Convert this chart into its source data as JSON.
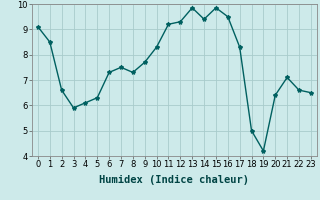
{
  "x": [
    0,
    1,
    2,
    3,
    4,
    5,
    6,
    7,
    8,
    9,
    10,
    11,
    12,
    13,
    14,
    15,
    16,
    17,
    18,
    19,
    20,
    21,
    22,
    23
  ],
  "y": [
    9.1,
    8.5,
    6.6,
    5.9,
    6.1,
    6.3,
    7.3,
    7.5,
    7.3,
    7.7,
    8.3,
    9.2,
    9.3,
    9.85,
    9.4,
    9.85,
    9.5,
    8.3,
    5.0,
    4.2,
    6.4,
    7.1,
    6.6,
    6.5
  ],
  "line_color": "#006060",
  "marker": "*",
  "marker_size": 3,
  "bg_color": "#cdeaea",
  "grid_color": "#a8cccc",
  "xlabel": "Humidex (Indice chaleur)",
  "xlabel_fontsize": 7.5,
  "xlim": [
    -0.5,
    23.5
  ],
  "ylim": [
    4,
    10
  ],
  "yticks": [
    4,
    5,
    6,
    7,
    8,
    9,
    10
  ],
  "xticks": [
    0,
    1,
    2,
    3,
    4,
    5,
    6,
    7,
    8,
    9,
    10,
    11,
    12,
    13,
    14,
    15,
    16,
    17,
    18,
    19,
    20,
    21,
    22,
    23
  ],
  "tick_fontsize": 6.0,
  "linewidth": 1.0
}
